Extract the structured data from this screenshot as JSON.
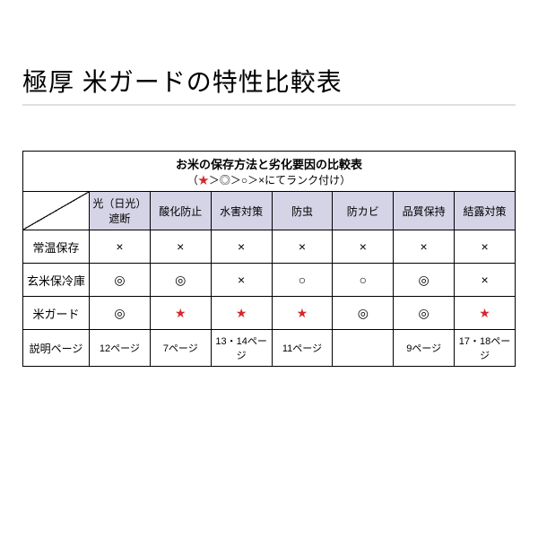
{
  "title": "極厚 米ガードの特性比較表",
  "table": {
    "caption_main": "お米の保存方法と劣化要因の比較表",
    "caption_sub_prefix": "（",
    "caption_sub_star": "★",
    "caption_sub_rest": "＞◎＞○＞×にてランク付け）",
    "columns": [
      "光（日光）遮断",
      "酸化防止",
      "水害対策",
      "防虫",
      "防カビ",
      "品質保持",
      "結露対策"
    ],
    "rows": [
      {
        "label": "常温保存",
        "cells": [
          {
            "mark": "×"
          },
          {
            "mark": "×"
          },
          {
            "mark": "×"
          },
          {
            "mark": "×"
          },
          {
            "mark": "×"
          },
          {
            "mark": "×"
          },
          {
            "mark": "×"
          }
        ]
      },
      {
        "label": "玄米保冷庫",
        "cells": [
          {
            "mark": "◎"
          },
          {
            "mark": "◎"
          },
          {
            "mark": "×"
          },
          {
            "mark": "○"
          },
          {
            "mark": "○"
          },
          {
            "mark": "◎"
          },
          {
            "mark": "×"
          }
        ]
      },
      {
        "label": "米ガード",
        "cells": [
          {
            "mark": "◎"
          },
          {
            "mark": "★",
            "star": true
          },
          {
            "mark": "★",
            "star": true
          },
          {
            "mark": "★",
            "star": true
          },
          {
            "mark": "◎"
          },
          {
            "mark": "◎"
          },
          {
            "mark": "★",
            "star": true
          }
        ]
      }
    ],
    "footer": {
      "label": "説明ページ",
      "cells": [
        "12ページ",
        "7ページ",
        "13・14ページ",
        "11ページ",
        "",
        "9ページ",
        "17・18ページ"
      ]
    }
  },
  "colors": {
    "header_bg": "#d5d3e6",
    "star_color": "#d4282e",
    "border": "#000000",
    "title_underline": "#e0e0e0"
  }
}
